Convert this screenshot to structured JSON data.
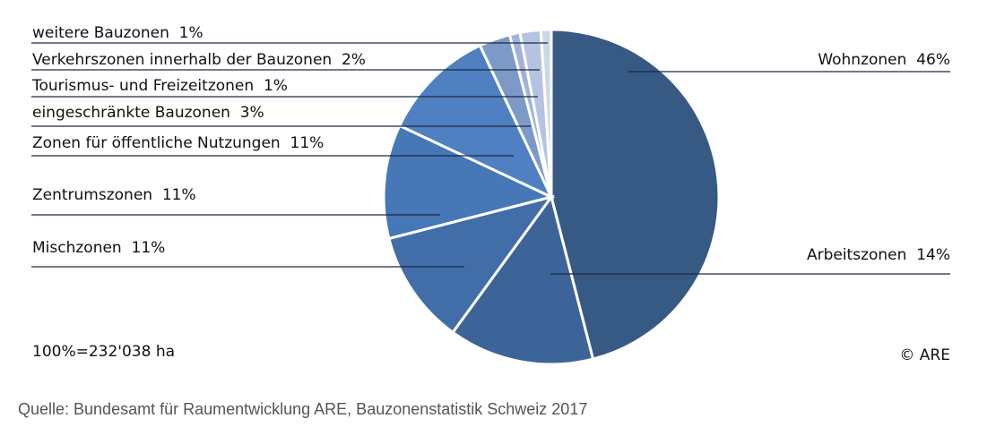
{
  "chart_data": {
    "type": "pie",
    "slices": [
      {
        "label": "Wohnzonen",
        "value": 46,
        "display": "Wohnzonen  46%",
        "color": "#375a85"
      },
      {
        "label": "Arbeitszonen",
        "value": 14,
        "display": "Arbeitszonen  14%",
        "color": "#3d6499"
      },
      {
        "label": "Mischzonen",
        "value": 11,
        "display": "Mischzonen  11%",
        "color": "#416ea8"
      },
      {
        "label": "Zentrumszonen",
        "value": 11,
        "display": "Zentrumszonen  11%",
        "color": "#4677b6"
      },
      {
        "label": "Zonen für öffentliche Nutzungen",
        "value": 11,
        "display": "Zonen für öffentliche Nutzungen  11%",
        "color": "#4f80c1"
      },
      {
        "label": "eingeschränkte Bauzonen",
        "value": 3,
        "display": "eingeschränkte Bauzonen  3%",
        "color": "#7d99c7"
      },
      {
        "label": "Tourismus- und Freizeitzonen",
        "value": 1,
        "display": "Tourismus- und Freizeitzonen  1%",
        "color": "#9fb3d8"
      },
      {
        "label": "Verkehrszonen innerhalb der Bauzonen",
        "value": 2,
        "display": "Verkehrszonen innerhalb der Bauzonen  2%",
        "color": "#b4c3e1"
      },
      {
        "label": "weitere Bauzonen",
        "value": 1,
        "display": "weitere Bauzonen  1%",
        "color": "#cdd7ea"
      }
    ],
    "total_note": "100%=232'038 ha",
    "copyright": "© ARE"
  },
  "source": "Quelle: Bundesamt für Raumentwicklung ARE, Bauzonenstatistik Schweiz 2017"
}
